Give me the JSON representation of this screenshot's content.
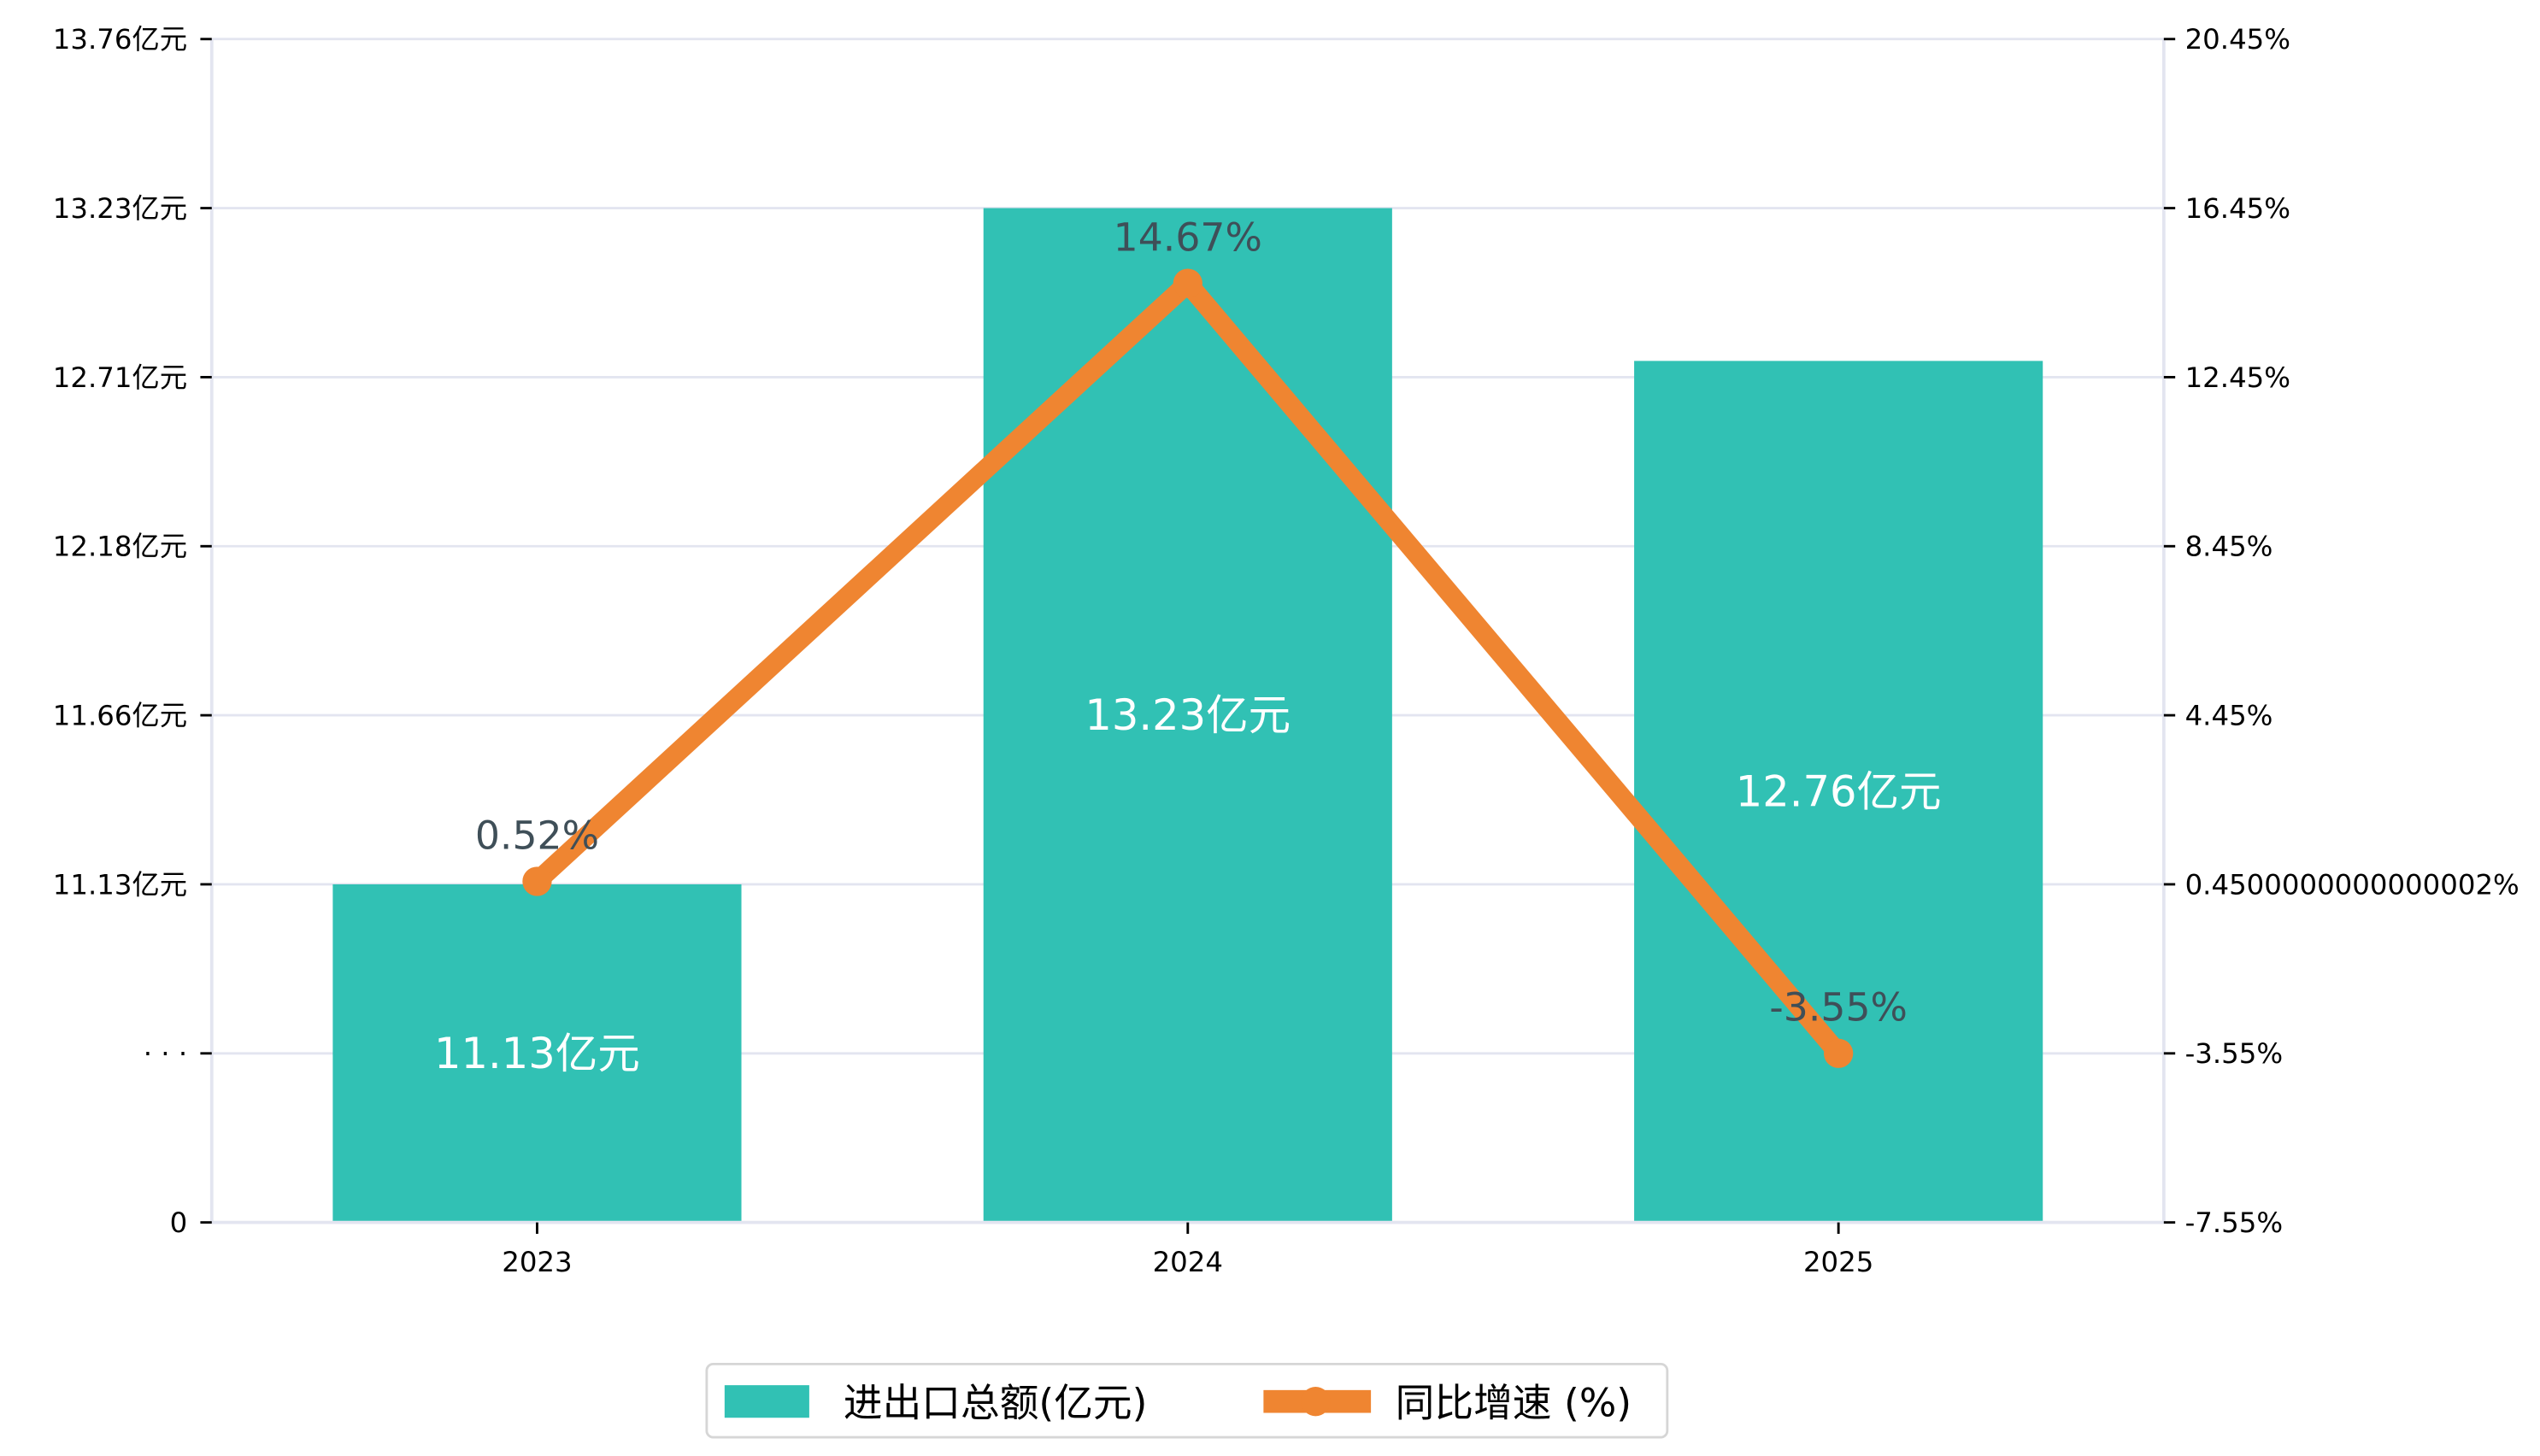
{
  "chart_data": {
    "type": "bar+line",
    "categories": [
      "2023",
      "2024",
      "2025"
    ],
    "series": [
      {
        "name": "进出口总额(亿元)",
        "type": "bar",
        "axis": "left",
        "values": [
          11.13,
          13.23,
          12.76
        ],
        "labels": [
          "11.13亿元",
          "13.23亿元",
          "12.76亿元"
        ],
        "color": "#31c1b4"
      },
      {
        "name": "同比增速 (%)",
        "type": "line",
        "axis": "right",
        "values": [
          0.52,
          14.67,
          -3.55
        ],
        "labels": [
          "0.52%",
          "14.67%",
          "-3.55%"
        ],
        "color": "#ef8531"
      }
    ],
    "left_axis": {
      "ticks": [
        "0",
        "· · ·",
        "11.13亿元",
        "11.66亿元",
        "12.18亿元",
        "12.71亿元",
        "13.23亿元",
        "13.76亿元"
      ],
      "numeric_ticks": [
        11.13,
        11.66,
        12.18,
        12.71,
        13.23,
        13.76
      ],
      "broken": true
    },
    "right_axis": {
      "ticks": [
        "-7.55%",
        "-3.55%",
        "0.4500000000000002%",
        "4.45%",
        "8.45%",
        "12.45%",
        "16.45%",
        "20.45%"
      ],
      "ylim": [
        -7.55,
        20.45
      ]
    },
    "grid": true,
    "legend": {
      "placement": "bottom-center",
      "entries": [
        "进出口总额(亿元)",
        "同比增速 (%)"
      ]
    },
    "title": "",
    "xlabel": "",
    "ylabel": ""
  }
}
